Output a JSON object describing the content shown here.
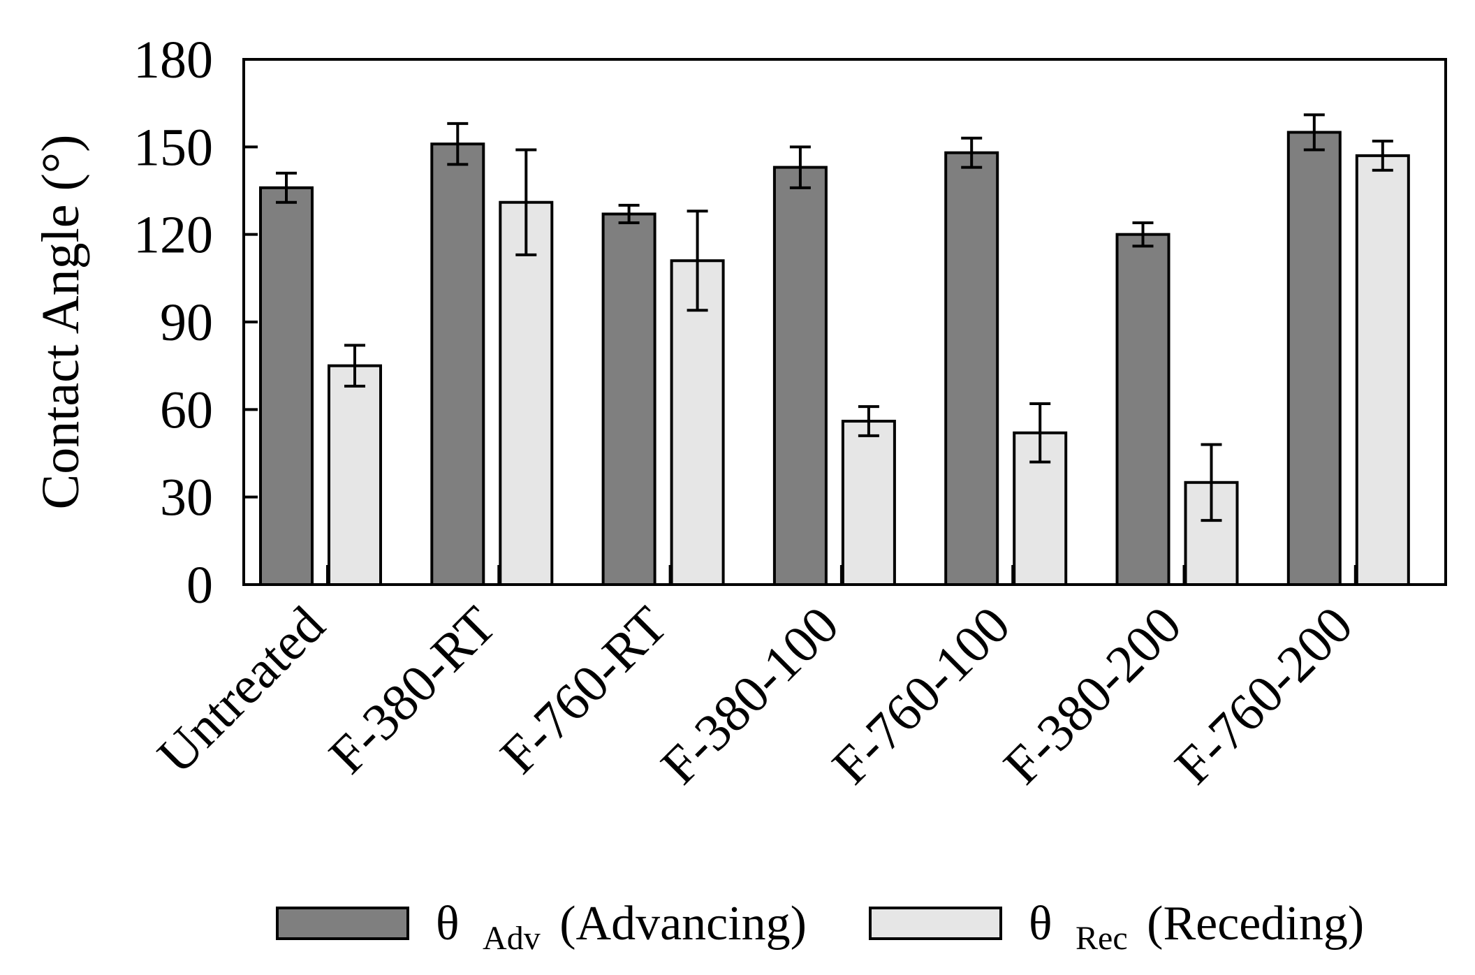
{
  "chart_data": {
    "type": "bar",
    "title": "",
    "xlabel": "",
    "ylabel": "Contact Angle (°)",
    "ylim": [
      0,
      180
    ],
    "yticks": [
      0,
      30,
      60,
      90,
      120,
      150,
      180
    ],
    "grid": false,
    "legend_position": "bottom",
    "categories": [
      "Untreated",
      "F-380-RT",
      "F-760-RT",
      "F-380-100",
      "F-760-100",
      "F-380-200",
      "F-760-200"
    ],
    "series": [
      {
        "name": "θ Adv (Advancing)",
        "symbol": "θ",
        "subscript": "Adv",
        "suffix": "(Advancing)",
        "color": "#7f7f7f",
        "values": [
          136,
          151,
          127,
          143,
          148,
          120,
          155
        ],
        "errors": [
          5,
          7,
          3,
          7,
          5,
          4,
          6
        ]
      },
      {
        "name": "θ Rec (Receding)",
        "symbol": "θ",
        "subscript": "Rec",
        "suffix": "(Receding)",
        "color": "#e6e6e6",
        "values": [
          75,
          131,
          111,
          56,
          52,
          35,
          147
        ],
        "errors": [
          7,
          18,
          17,
          5,
          10,
          13,
          5
        ]
      }
    ]
  }
}
